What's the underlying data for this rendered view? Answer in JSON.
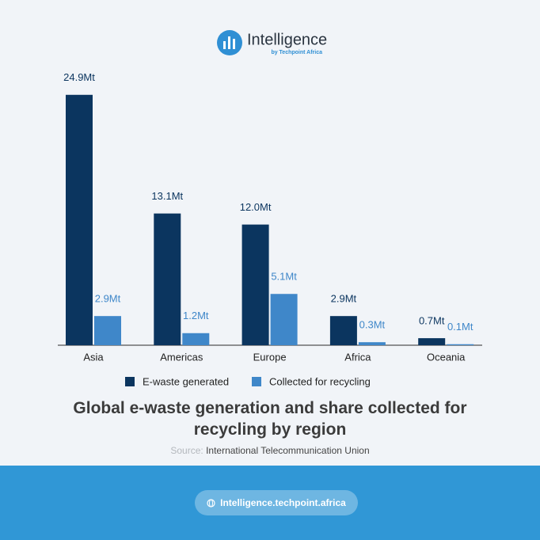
{
  "header": {
    "brand": "Intelligence",
    "tagline": "by Techpoint Africa"
  },
  "chart_data": {
    "type": "bar",
    "title": "Global e-waste generation and share collected for recycling by region",
    "source_label": "Source:",
    "source": "International Telecommunication Union",
    "categories": [
      "Asia",
      "Americas",
      "Europe",
      "Africa",
      "Oceania"
    ],
    "series": [
      {
        "name": "E-waste generated",
        "color": "#0b355f",
        "values": [
          24.9,
          13.1,
          12.0,
          2.9,
          0.7
        ],
        "value_labels": [
          "24.9Mt",
          "13.1Mt",
          "12.0Mt",
          "2.9Mt",
          "0.7Mt"
        ]
      },
      {
        "name": "Collected for recycling",
        "color": "#3f87c9",
        "values": [
          2.9,
          1.2,
          5.1,
          0.3,
          0.1
        ],
        "value_labels": [
          "2.9Mt",
          "1.2Mt",
          "5.1Mt",
          "0.3Mt",
          "0.1Mt"
        ]
      }
    ]
  },
  "footer": {
    "url": "Intelligence.techpoint.africa"
  }
}
